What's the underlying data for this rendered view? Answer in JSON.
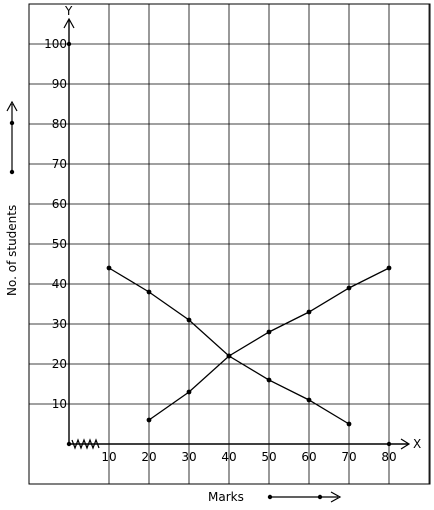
{
  "chart_data": {
    "type": "line",
    "xlabel": "Marks",
    "ylabel": "No. of students",
    "x_axis_letter": "X",
    "y_axis_letter": "Y",
    "xlim": [
      0,
      90
    ],
    "ylim": [
      -10,
      110
    ],
    "grid": true,
    "x_ticks": [
      10,
      20,
      30,
      40,
      50,
      60,
      70,
      80
    ],
    "x_tick_labels": [
      "10",
      "20",
      "30",
      "40",
      "50",
      "60",
      "70",
      "80"
    ],
    "y_ticks": [
      10,
      20,
      30,
      40,
      50,
      60,
      70,
      80,
      90,
      100
    ],
    "y_tick_labels": [
      "10",
      "20",
      "30",
      "40",
      "50",
      "60",
      "70",
      "80",
      "90",
      "100"
    ],
    "series": [
      {
        "x": [
          10,
          20,
          30,
          40,
          50,
          60,
          70
        ],
        "y": [
          44,
          38,
          31,
          22,
          16,
          11,
          5
        ]
      },
      {
        "x": [
          20,
          30,
          40,
          50,
          60,
          70,
          80
        ],
        "y": [
          6,
          13,
          22,
          28,
          33,
          39,
          44
        ]
      }
    ]
  }
}
